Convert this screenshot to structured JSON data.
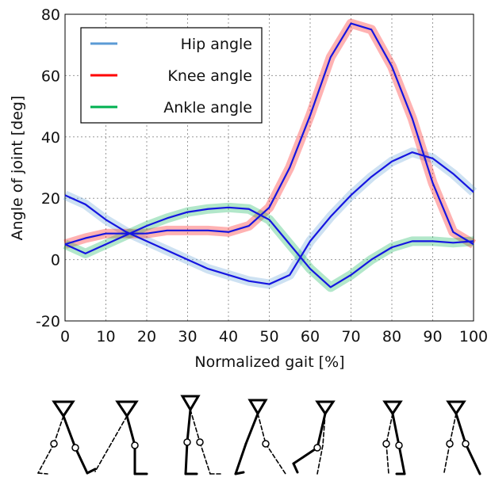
{
  "chart_data": {
    "type": "line",
    "x_label": "Normalized gait [%]",
    "y_label": "Angle of joint [deg]",
    "x": [
      0,
      5,
      10,
      15,
      20,
      25,
      30,
      35,
      40,
      45,
      50,
      55,
      60,
      65,
      70,
      75,
      80,
      85,
      90,
      95,
      100
    ],
    "series": [
      {
        "name": "Hip angle",
        "color": "#5b9bd5",
        "values": [
          21,
          18,
          13,
          9,
          6,
          3,
          0,
          -3,
          -5,
          -7,
          -8,
          -5,
          6,
          14,
          21,
          27,
          32,
          35,
          33,
          28,
          22
        ]
      },
      {
        "name": "Knee angle",
        "color": "#ff0000",
        "values": [
          5,
          7,
          8.5,
          8.5,
          8.5,
          9.5,
          9.5,
          9.5,
          9,
          11,
          17,
          30,
          47,
          66,
          77,
          75,
          63,
          46,
          25,
          9,
          5
        ]
      },
      {
        "name": "Ankle angle",
        "color": "#00b050",
        "values": [
          5,
          2,
          5,
          8,
          11,
          13.5,
          15.5,
          16.5,
          17,
          16.5,
          13,
          5,
          -3,
          -9,
          -5,
          0,
          4,
          6,
          6,
          5.5,
          6
        ]
      }
    ],
    "mean_color": "#1515e0",
    "xlim": [
      0,
      100
    ],
    "xticks": [
      0,
      10,
      20,
      30,
      40,
      50,
      60,
      70,
      80,
      90,
      100
    ],
    "ylim": [
      -20,
      80
    ],
    "yticks": [
      -20,
      0,
      20,
      40,
      60,
      80
    ],
    "grid": true,
    "legend": "upper left"
  }
}
